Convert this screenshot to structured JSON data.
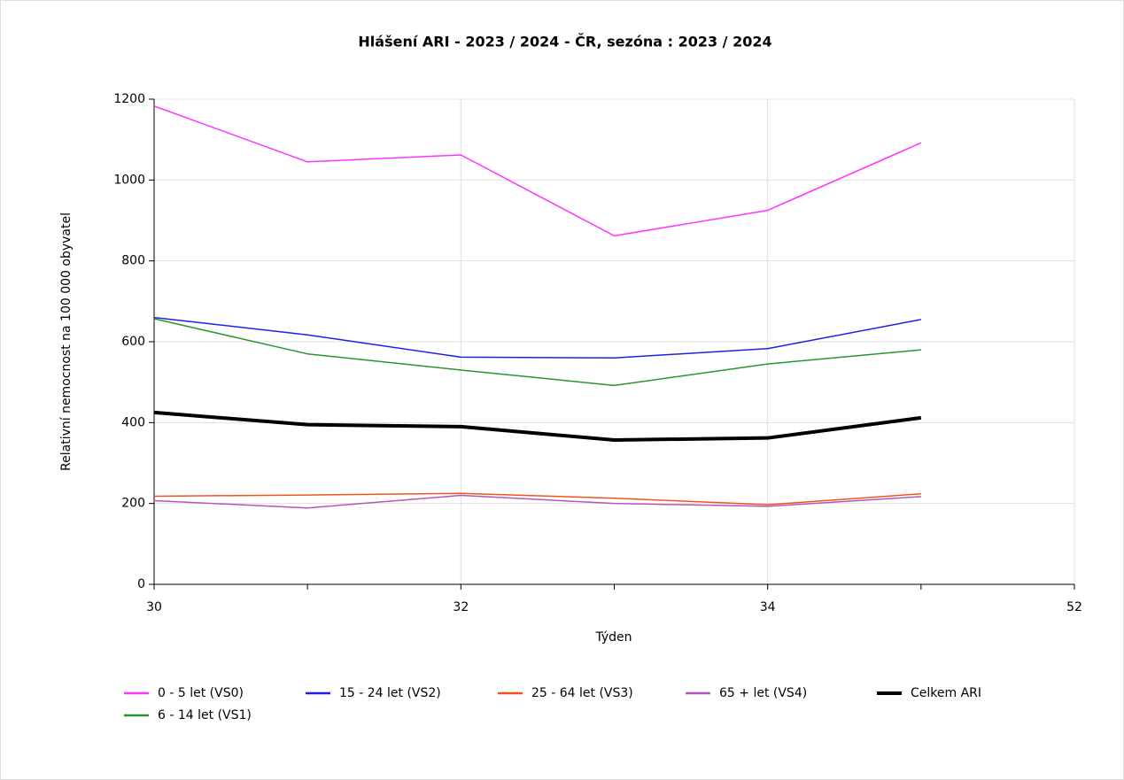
{
  "chart_data": {
    "type": "line",
    "title": "Hlášení ARI - 2023 / 2024 - ČR, sezóna : 2023 / 2024",
    "x_label": "Týden",
    "y_label": "Relativní nemocnost na 100 000 obyvatel",
    "categories": [
      "30",
      null,
      "32",
      null,
      "34",
      null,
      "52"
    ],
    "ylim": [
      0,
      1200
    ],
    "yticks": [
      0,
      200,
      400,
      600,
      800,
      1000,
      1200
    ],
    "grid": true,
    "series": [
      {
        "name": "0 - 5 let (VS0)",
        "color": "#ff33ff",
        "width": 1.5,
        "values": [
          1183,
          1045,
          1062,
          862,
          925,
          1092,
          null
        ]
      },
      {
        "name": "15 - 24 let (VS2)",
        "color": "#1f1fe6",
        "width": 1.5,
        "values": [
          660,
          617,
          562,
          560,
          583,
          655,
          null
        ]
      },
      {
        "name": "25 - 64 let (VS3)",
        "color": "#f0531e",
        "width": 1.5,
        "values": [
          218,
          221,
          225,
          213,
          197,
          224,
          null
        ]
      },
      {
        "name": "65 + let (VS4)",
        "color": "#b356bd",
        "width": 1.5,
        "values": [
          207,
          189,
          220,
          200,
          193,
          217,
          null
        ]
      },
      {
        "name": "Celkem ARI",
        "color": "#000000",
        "width": 4,
        "values": [
          425,
          395,
          390,
          357,
          362,
          412,
          null
        ]
      },
      {
        "name": "6 - 14 let (VS1)",
        "color": "#2a952a",
        "width": 1.5,
        "values": [
          657,
          570,
          530,
          492,
          545,
          580,
          null
        ]
      }
    ]
  }
}
